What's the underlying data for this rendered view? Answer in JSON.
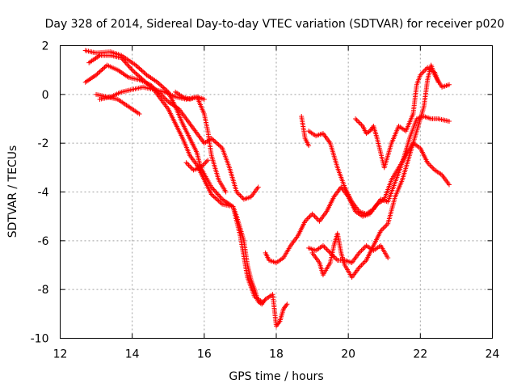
{
  "chart_data": {
    "type": "scatter",
    "title": "Day 328 of 2014, Sidereal Day-to-day VTEC variation (SDTVAR) for receiver p020",
    "xlabel": "GPS time / hours",
    "ylabel": "SDTVAR / TECUs",
    "xlim": [
      12,
      24
    ],
    "ylim": [
      -10,
      2
    ],
    "x_ticks": [
      12,
      14,
      16,
      18,
      20,
      22,
      24
    ],
    "y_ticks": [
      2,
      0,
      -2,
      -4,
      -6,
      -8,
      -10
    ],
    "grid": true,
    "marker": "+",
    "series": [
      {
        "color": "#ff0000",
        "points": [
          [
            12.7,
            1.8
          ],
          [
            13.0,
            1.7
          ],
          [
            13.4,
            1.75
          ],
          [
            13.7,
            1.6
          ],
          [
            14.1,
            1.2
          ],
          [
            14.4,
            0.8
          ],
          [
            14.7,
            0.5
          ],
          [
            15.0,
            0.1
          ],
          [
            15.2,
            -0.5
          ],
          [
            15.4,
            -1.2
          ],
          [
            15.6,
            -1.8
          ],
          [
            15.8,
            -2.4
          ],
          [
            15.9,
            -3.0
          ],
          [
            16.2,
            -3.8
          ],
          [
            16.5,
            -4.3
          ],
          [
            16.8,
            -4.6
          ],
          [
            17.0,
            -5.8
          ],
          [
            17.2,
            -7.5
          ],
          [
            17.4,
            -8.3
          ],
          [
            17.6,
            -8.5
          ]
        ]
      },
      {
        "color": "#ff0000",
        "points": [
          [
            12.8,
            1.3
          ],
          [
            13.1,
            1.6
          ],
          [
            13.4,
            1.6
          ],
          [
            13.7,
            1.5
          ],
          [
            14.0,
            1.0
          ],
          [
            14.3,
            0.6
          ],
          [
            14.6,
            0.2
          ],
          [
            14.8,
            -0.2
          ],
          [
            15.0,
            -0.6
          ],
          [
            15.2,
            -1.2
          ],
          [
            15.4,
            -1.8
          ],
          [
            15.6,
            -2.5
          ],
          [
            15.8,
            -2.9
          ],
          [
            16.0,
            -3.5
          ],
          [
            16.2,
            -4.1
          ],
          [
            16.5,
            -4.5
          ],
          [
            16.8,
            -4.6
          ]
        ]
      },
      {
        "color": "#ff0000",
        "points": [
          [
            12.7,
            0.5
          ],
          [
            13.0,
            0.8
          ],
          [
            13.3,
            1.2
          ],
          [
            13.6,
            1.0
          ],
          [
            13.9,
            0.7
          ],
          [
            14.2,
            0.6
          ],
          [
            14.5,
            0.4
          ],
          [
            14.8,
            0.0
          ],
          [
            15.0,
            -0.3
          ],
          [
            15.3,
            -0.6
          ],
          [
            15.5,
            -1.0
          ],
          [
            15.8,
            -1.6
          ],
          [
            16.0,
            -2.0
          ],
          [
            16.2,
            -1.8
          ],
          [
            16.5,
            -2.2
          ],
          [
            16.7,
            -3.0
          ],
          [
            16.9,
            -4.0
          ],
          [
            17.1,
            -4.3
          ],
          [
            17.3,
            -4.2
          ],
          [
            17.5,
            -3.8
          ]
        ]
      },
      {
        "color": "#ff0000",
        "points": [
          [
            13.1,
            -0.2
          ],
          [
            13.4,
            -0.1
          ],
          [
            13.7,
            0.1
          ],
          [
            14.0,
            0.2
          ],
          [
            14.3,
            0.3
          ],
          [
            14.6,
            0.2
          ],
          [
            14.9,
            0.1
          ],
          [
            15.2,
            -0.1
          ],
          [
            15.5,
            -0.2
          ],
          [
            15.8,
            -0.1
          ],
          [
            16.0,
            -0.8
          ],
          [
            16.1,
            -1.5
          ],
          [
            16.2,
            -2.5
          ],
          [
            16.4,
            -3.5
          ],
          [
            16.6,
            -4.0
          ]
        ]
      },
      {
        "color": "#ff0000",
        "points": [
          [
            13.0,
            0.0
          ],
          [
            13.3,
            -0.1
          ],
          [
            13.6,
            -0.2
          ],
          [
            13.8,
            -0.4
          ],
          [
            14.0,
            -0.6
          ],
          [
            14.2,
            -0.8
          ]
        ]
      },
      {
        "color": "#ff0000",
        "points": [
          [
            15.5,
            -2.8
          ],
          [
            15.7,
            -3.1
          ],
          [
            15.9,
            -3.0
          ],
          [
            16.1,
            -2.7
          ]
        ]
      },
      {
        "color": "#ff0000",
        "points": [
          [
            15.2,
            0.1
          ],
          [
            15.4,
            -0.1
          ],
          [
            15.6,
            -0.2
          ],
          [
            15.8,
            -0.1
          ],
          [
            16.0,
            -0.2
          ]
        ]
      },
      {
        "color": "#ff0000",
        "points": [
          [
            16.8,
            -4.6
          ],
          [
            16.9,
            -5.0
          ],
          [
            17.0,
            -5.5
          ],
          [
            17.1,
            -6.0
          ],
          [
            17.2,
            -7.0
          ],
          [
            17.3,
            -7.6
          ],
          [
            17.4,
            -8.0
          ],
          [
            17.5,
            -8.5
          ],
          [
            17.6,
            -8.6
          ],
          [
            17.7,
            -8.4
          ],
          [
            17.9,
            -8.2
          ],
          [
            18.0,
            -9.5
          ],
          [
            18.1,
            -9.3
          ],
          [
            18.2,
            -8.8
          ],
          [
            18.3,
            -8.6
          ]
        ]
      },
      {
        "color": "#ff0000",
        "points": [
          [
            17.7,
            -6.5
          ],
          [
            17.8,
            -6.8
          ],
          [
            18.0,
            -6.9
          ],
          [
            18.2,
            -6.7
          ],
          [
            18.4,
            -6.2
          ],
          [
            18.6,
            -5.8
          ],
          [
            18.8,
            -5.2
          ],
          [
            19.0,
            -4.9
          ],
          [
            19.2,
            -5.2
          ],
          [
            19.4,
            -4.8
          ],
          [
            19.6,
            -4.2
          ],
          [
            19.8,
            -3.8
          ],
          [
            20.0,
            -4.2
          ],
          [
            20.2,
            -4.8
          ],
          [
            20.4,
            -5.0
          ],
          [
            20.6,
            -4.9
          ],
          [
            20.8,
            -4.5
          ],
          [
            21.0,
            -4.3
          ],
          [
            21.2,
            -3.5
          ],
          [
            21.4,
            -3.0
          ],
          [
            21.6,
            -2.5
          ],
          [
            21.8,
            -2.0
          ],
          [
            22.0,
            -2.2
          ],
          [
            22.2,
            -2.8
          ],
          [
            22.4,
            -3.1
          ],
          [
            22.6,
            -3.3
          ],
          [
            22.8,
            -3.7
          ]
        ]
      },
      {
        "color": "#ff0000",
        "points": [
          [
            18.9,
            -1.5
          ],
          [
            19.1,
            -1.7
          ],
          [
            19.3,
            -1.6
          ],
          [
            19.5,
            -2.0
          ],
          [
            19.7,
            -3.0
          ],
          [
            19.9,
            -3.8
          ],
          [
            20.1,
            -4.4
          ],
          [
            20.3,
            -4.8
          ],
          [
            20.5,
            -4.9
          ],
          [
            20.7,
            -4.7
          ],
          [
            20.9,
            -4.3
          ],
          [
            21.1,
            -4.4
          ],
          [
            21.3,
            -3.6
          ],
          [
            21.5,
            -2.8
          ],
          [
            21.7,
            -1.8
          ],
          [
            21.9,
            -1.0
          ],
          [
            22.1,
            -0.9
          ],
          [
            22.3,
            -1.0
          ],
          [
            22.5,
            -1.0
          ],
          [
            22.8,
            -1.1
          ]
        ]
      },
      {
        "color": "#ff0000",
        "points": [
          [
            18.7,
            -0.9
          ],
          [
            18.8,
            -1.8
          ],
          [
            18.9,
            -2.1
          ]
        ]
      },
      {
        "color": "#ff0000",
        "points": [
          [
            18.9,
            -6.3
          ],
          [
            19.1,
            -6.4
          ],
          [
            19.3,
            -6.2
          ],
          [
            19.5,
            -6.5
          ],
          [
            19.7,
            -6.8
          ],
          [
            19.9,
            -6.8
          ],
          [
            20.1,
            -6.9
          ],
          [
            20.3,
            -6.5
          ],
          [
            20.5,
            -6.2
          ],
          [
            20.7,
            -6.4
          ],
          [
            20.9,
            -6.2
          ],
          [
            21.1,
            -6.7
          ]
        ]
      },
      {
        "color": "#ff0000",
        "points": [
          [
            19.0,
            -6.5
          ],
          [
            19.2,
            -6.9
          ],
          [
            19.3,
            -7.4
          ],
          [
            19.5,
            -6.9
          ],
          [
            19.6,
            -6.2
          ],
          [
            19.7,
            -5.7
          ],
          [
            19.8,
            -6.5
          ],
          [
            19.9,
            -7.0
          ],
          [
            20.1,
            -7.5
          ],
          [
            20.3,
            -7.1
          ],
          [
            20.5,
            -6.8
          ],
          [
            20.7,
            -6.2
          ],
          [
            20.9,
            -5.6
          ],
          [
            21.1,
            -5.3
          ],
          [
            21.3,
            -4.2
          ],
          [
            21.5,
            -3.5
          ],
          [
            21.7,
            -2.5
          ],
          [
            21.9,
            -1.5
          ],
          [
            22.1,
            -0.5
          ],
          [
            22.2,
            0.6
          ],
          [
            22.3,
            1.2
          ],
          [
            22.4,
            0.8
          ],
          [
            22.6,
            0.3
          ],
          [
            22.8,
            0.4
          ]
        ]
      },
      {
        "color": "#ff0000",
        "points": [
          [
            20.2,
            -1.0
          ],
          [
            20.4,
            -1.3
          ],
          [
            20.5,
            -1.6
          ],
          [
            20.6,
            -1.5
          ],
          [
            20.7,
            -1.3
          ],
          [
            20.8,
            -1.8
          ],
          [
            21.0,
            -3.0
          ],
          [
            21.2,
            -2.0
          ],
          [
            21.4,
            -1.3
          ],
          [
            21.6,
            -1.5
          ],
          [
            21.8,
            -0.8
          ],
          [
            21.9,
            0.4
          ],
          [
            22.0,
            0.8
          ],
          [
            22.2,
            1.1
          ],
          [
            22.4,
            0.9
          ],
          [
            22.5,
            0.5
          ]
        ]
      }
    ]
  }
}
